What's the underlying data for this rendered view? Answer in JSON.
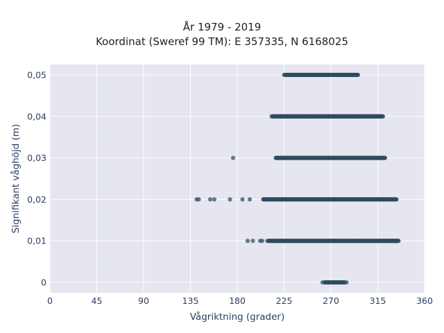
{
  "chart_data": {
    "type": "scatter",
    "title": "År 1979 - 2019",
    "subtitle": "Koordinat (Sweref 99 TM): E 357335, N 6168025",
    "xlabel": "Vågriktning (grader)",
    "ylabel": "Signifikant våghöjd (m)",
    "xlim": [
      0,
      360
    ],
    "ylim": [
      -0.0025,
      0.0525
    ],
    "x_ticks": [
      0,
      45,
      90,
      135,
      180,
      225,
      270,
      315,
      360
    ],
    "x_tick_labels": [
      "0",
      "45",
      "90",
      "135",
      "180",
      "225",
      "270",
      "315",
      "360"
    ],
    "y_ticks": [
      0,
      0.01,
      0.02,
      0.03,
      0.04,
      0.05
    ],
    "y_tick_labels": [
      "0",
      "0,01",
      "0,02",
      "0,03",
      "0,04",
      "0,05"
    ],
    "grid": true,
    "marker_color": "#2f4b61",
    "background_color": "#e5e6ef",
    "bands": [
      {
        "y": 0.05,
        "dense_from": 226,
        "dense_to": 296,
        "sparse": [
          225
        ]
      },
      {
        "y": 0.04,
        "dense_from": 214,
        "dense_to": 320,
        "sparse": [
          213
        ]
      },
      {
        "y": 0.03,
        "dense_from": 217,
        "dense_to": 322,
        "sparse": [
          176,
          218
        ]
      },
      {
        "y": 0.02,
        "dense_from": 205,
        "dense_to": 333,
        "sparse": [
          141,
          143,
          154,
          158,
          173,
          185,
          192,
          206
        ]
      },
      {
        "y": 0.01,
        "dense_from": 210,
        "dense_to": 335,
        "sparse": [
          190,
          195,
          202,
          204,
          209,
          326,
          330,
          333
        ]
      },
      {
        "y": 0,
        "dense_from": 264,
        "dense_to": 283,
        "sparse": [
          262,
          285
        ]
      }
    ]
  }
}
